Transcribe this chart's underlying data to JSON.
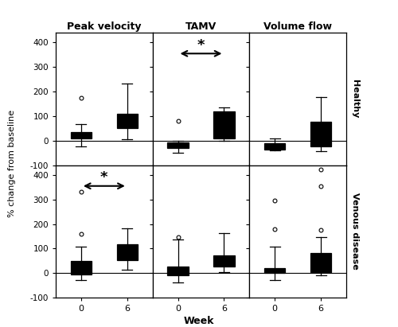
{
  "col_titles": [
    "Peak velocity",
    "TAMV",
    "Volume flow"
  ],
  "row_titles": [
    "Healthy",
    "Venous disease"
  ],
  "xlabel": "Week",
  "ylabel": "% change from baseline",
  "healthy": {
    "peak_velocity": {
      "w0": {
        "med": 22,
        "q1": 8,
        "q3": 35,
        "whislo": -22,
        "whishi": 68,
        "fliers": [
          175
        ]
      },
      "w6": {
        "med": 65,
        "q1": 52,
        "q3": 108,
        "whislo": 5,
        "whishi": 232,
        "fliers": []
      }
    },
    "tamv": {
      "w0": {
        "med": -20,
        "q1": -30,
        "q3": -8,
        "whislo": -48,
        "whishi": -2,
        "fliers": [
          80
        ]
      },
      "w6": {
        "med": 28,
        "q1": 8,
        "q3": 118,
        "whislo": -2,
        "whishi": 135,
        "fliers": []
      }
    },
    "volume_flow": {
      "w0": {
        "med": -25,
        "q1": -35,
        "q3": -12,
        "whislo": -40,
        "whishi": 8,
        "fliers": []
      },
      "w6": {
        "med": -12,
        "q1": -22,
        "q3": 78,
        "whislo": -42,
        "whishi": 178,
        "fliers": []
      }
    }
  },
  "venous": {
    "peak_velocity": {
      "w0": {
        "med": 10,
        "q1": -5,
        "q3": 48,
        "whislo": -30,
        "whishi": 108,
        "fliers": [
          158,
          332
        ]
      },
      "w6": {
        "med": 62,
        "q1": 52,
        "q3": 118,
        "whislo": 12,
        "whishi": 182,
        "fliers": []
      }
    },
    "tamv": {
      "w0": {
        "med": 12,
        "q1": -8,
        "q3": 28,
        "whislo": -38,
        "whishi": 138,
        "fliers": [
          148
        ]
      },
      "w6": {
        "med": 42,
        "q1": 26,
        "q3": 72,
        "whislo": 4,
        "whishi": 162,
        "fliers": []
      }
    },
    "volume_flow": {
      "w0": {
        "med": 10,
        "q1": 2,
        "q3": 20,
        "whislo": -28,
        "whishi": 108,
        "fliers": [
          295,
          178
        ]
      },
      "w6": {
        "med": 25,
        "q1": 5,
        "q3": 82,
        "whislo": -10,
        "whishi": 148,
        "fliers": [
          422,
          355,
          175
        ]
      }
    }
  },
  "ylim": [
    -100,
    440
  ],
  "yticks": [
    -100,
    0,
    100,
    200,
    300,
    400
  ],
  "background_color": "#ffffff",
  "box_facecolor_w0": "#cccccc",
  "box_facecolor_w6": "#ffffff"
}
